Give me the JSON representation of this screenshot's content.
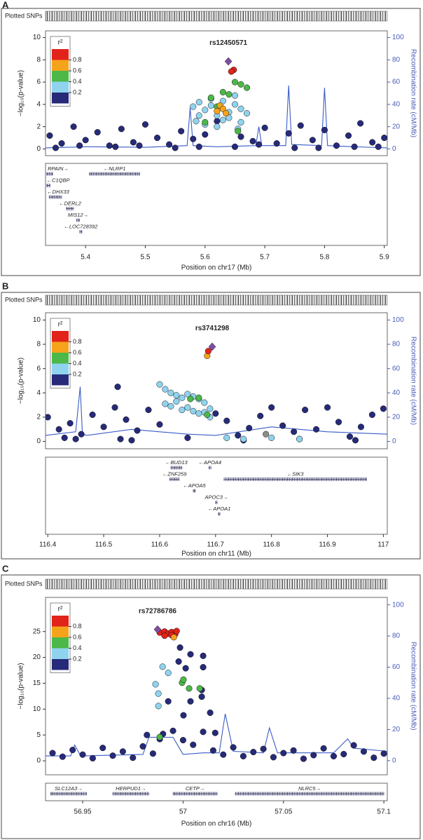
{
  "chart_data": [
    {
      "type": "scatter",
      "panel": "A",
      "track_label": "Plotted SNPs",
      "title": "rs12450571",
      "xlabel": "Position on chr17 (Mb)",
      "ylabel": "−log₁₀(p-value)",
      "y2label": "Recombination rate (cM/Mb)",
      "xlim": [
        5.333,
        5.905
      ],
      "xticks": [
        5.4,
        5.5,
        5.6,
        5.7,
        5.8,
        5.9
      ],
      "ylim": [
        -0.6,
        10.6
      ],
      "yticks": [
        0,
        2,
        4,
        6,
        8,
        10
      ],
      "y2lim": [
        -6,
        106
      ],
      "y2ticks": [
        0,
        20,
        40,
        60,
        80,
        100
      ],
      "legend": {
        "title": "r²",
        "position": "upper left",
        "colors": [
          "#262a78",
          "#8fd3ee",
          "#4cb848",
          "#f6a31c",
          "#e2231a"
        ],
        "ticks": [
          0.2,
          0.4,
          0.6,
          0.8
        ]
      },
      "series": [
        {
          "color": "#262a78",
          "x": [
            5.34,
            5.36,
            5.38,
            5.4,
            5.42,
            5.44,
            5.46,
            5.48,
            5.5,
            5.52,
            5.54,
            5.56,
            5.58,
            5.6,
            5.62,
            5.66,
            5.68,
            5.7,
            5.72,
            5.74,
            5.76,
            5.78,
            5.8,
            5.82,
            5.84,
            5.86,
            5.88,
            5.9,
            5.35,
            5.45,
            5.55,
            5.65,
            5.75,
            5.85,
            5.39,
            5.49,
            5.59,
            5.69,
            5.79,
            5.89
          ],
          "values": [
            1.2,
            0.5,
            2.0,
            0.8,
            1.5,
            0.3,
            1.8,
            0.6,
            2.2,
            1.0,
            0.4,
            1.6,
            0.9,
            1.3,
            2.5,
            1.1,
            0.7,
            1.9,
            0.5,
            1.4,
            2.1,
            0.8,
            1.7,
            0.3,
            1.2,
            2.3,
            0.6,
            1.0,
            0.1,
            0.2,
            0.1,
            0.2,
            0.1,
            0.2,
            0.3,
            0.3,
            0.2,
            0.4,
            0.1,
            0.2
          ]
        },
        {
          "color": "#8fd3ee",
          "x": [
            5.58,
            5.59,
            5.6,
            5.61,
            5.62,
            5.63,
            5.64,
            5.65,
            5.66,
            5.6,
            5.62,
            5.64,
            5.66,
            5.59,
            5.61,
            5.63,
            5.65,
            5.67,
            5.585,
            5.655
          ],
          "values": [
            3.8,
            4.2,
            3.5,
            4.5,
            3.0,
            2.6,
            3.3,
            4.0,
            3.6,
            2.2,
            2.0,
            2.8,
            2.4,
            3.0,
            3.9,
            4.3,
            4.8,
            3.2,
            2.5,
            1.8
          ]
        },
        {
          "color": "#4cb848",
          "x": [
            5.61,
            5.63,
            5.65,
            5.66,
            5.67,
            5.64,
            5.62,
            5.655,
            5.6
          ],
          "values": [
            4.6,
            5.1,
            6.0,
            5.8,
            5.5,
            4.9,
            3.8,
            1.6,
            2.4
          ]
        },
        {
          "color": "#f6a31c",
          "x": [
            5.62,
            5.625,
            5.63,
            5.635
          ],
          "values": [
            3.4,
            3.9,
            3.6,
            3.2
          ]
        },
        {
          "color": "#e2231a",
          "x": [
            5.648,
            5.644
          ],
          "values": [
            7.1,
            6.95
          ]
        },
        {
          "color": "#7f4ea3",
          "marker": "diamond",
          "x": [
            5.639
          ],
          "values": [
            7.86
          ]
        },
        {
          "color": "#3a5bc7",
          "axis": "y2",
          "type": "line",
          "x": [
            5.333,
            5.4,
            5.5,
            5.57,
            5.575,
            5.58,
            5.62,
            5.685,
            5.69,
            5.695,
            5.735,
            5.74,
            5.745,
            5.795,
            5.8,
            5.805,
            5.85,
            5.905
          ],
          "values": [
            1,
            2,
            1.5,
            3,
            37,
            3,
            2,
            3,
            20,
            3,
            3,
            57,
            4,
            3,
            55,
            3,
            2,
            1
          ]
        }
      ],
      "genes": [
        {
          "name": "RPAIN→",
          "start": 5.335,
          "end": 5.345
        },
        {
          "name": "←NLRP1",
          "start": 5.406,
          "end": 5.491
        },
        {
          "name": "←C1QBP",
          "start": 5.335,
          "end": 5.341
        },
        {
          "name": "←DHX33",
          "start": 5.339,
          "end": 5.36
        },
        {
          "name": "←DERL2",
          "start": 5.368,
          "end": 5.38
        },
        {
          "name": "MIS12→",
          "start": 5.385,
          "end": 5.39
        },
        {
          "name": "←LOC728392",
          "start": 5.39,
          "end": 5.394
        }
      ]
    },
    {
      "type": "scatter",
      "panel": "B",
      "track_label": "Plotted SNPs",
      "title": "rs3741298",
      "xlabel": "Position on chr11 (Mb)",
      "ylabel": "−log₁₀(p-value)",
      "y2label": "Recombination rate (cM/Mb)",
      "xlim": [
        116.396,
        117.007
      ],
      "xticks": [
        116.4,
        116.5,
        116.6,
        116.7,
        116.8,
        116.9,
        117
      ],
      "ylim": [
        -0.6,
        10.6
      ],
      "yticks": [
        0,
        2,
        4,
        6,
        8,
        10
      ],
      "y2lim": [
        -6,
        106
      ],
      "y2ticks": [
        0,
        20,
        40,
        60,
        80,
        100
      ],
      "legend": {
        "title": "r²",
        "position": "upper left",
        "colors": [
          "#262a78",
          "#8fd3ee",
          "#4cb848",
          "#f6a31c",
          "#e2231a"
        ],
        "ticks": [
          0.2,
          0.4,
          0.6,
          0.8
        ]
      },
      "series": [
        {
          "color": "#262a78",
          "x": [
            116.4,
            116.42,
            116.44,
            116.46,
            116.48,
            116.5,
            116.52,
            116.525,
            116.54,
            116.56,
            116.58,
            116.6,
            116.7,
            116.72,
            116.74,
            116.76,
            116.78,
            116.8,
            116.82,
            116.84,
            116.86,
            116.88,
            116.9,
            116.92,
            116.94,
            116.96,
            116.98,
            117.0,
            116.45,
            116.55,
            116.65,
            116.75,
            116.85,
            116.95,
            116.43,
            116.53
          ],
          "values": [
            2.0,
            1.0,
            1.5,
            0.6,
            2.2,
            1.2,
            2.8,
            4.5,
            1.8,
            0.9,
            2.6,
            1.4,
            2.3,
            1.7,
            0.5,
            1.1,
            2.1,
            2.8,
            1.3,
            0.8,
            2.6,
            1.0,
            2.8,
            1.6,
            0.4,
            1.2,
            2.2,
            2.7,
            0.2,
            0.1,
            0.3,
            0.1,
            0.2,
            0.1,
            0.3,
            0.2
          ]
        },
        {
          "color": "#8fd3ee",
          "x": [
            116.6,
            116.61,
            116.62,
            116.63,
            116.64,
            116.65,
            116.66,
            116.67,
            116.68,
            116.69,
            116.62,
            116.64,
            116.66,
            116.68,
            116.61,
            116.63,
            116.65,
            116.67,
            116.69,
            116.72,
            116.75,
            116.8,
            116.85
          ],
          "values": [
            4.7,
            4.3,
            4.0,
            3.8,
            3.6,
            3.9,
            3.7,
            3.5,
            3.2,
            2.7,
            2.9,
            2.6,
            2.5,
            2.4,
            3.1,
            3.3,
            2.8,
            2.3,
            2.0,
            0.3,
            0.2,
            0.3,
            0.2
          ]
        },
        {
          "color": "#4cb848",
          "x": [
            116.655,
            116.67,
            116.685
          ],
          "values": [
            3.5,
            3.6,
            2.2
          ]
        },
        {
          "color": "#8c8c8c",
          "x": [
            116.79
          ],
          "values": [
            0.6
          ]
        },
        {
          "color": "#f6a31c",
          "x": [
            116.685
          ],
          "values": [
            7.05
          ]
        },
        {
          "color": "#e2231a",
          "x": [
            116.687
          ],
          "values": [
            7.44
          ]
        },
        {
          "color": "#7f4ea3",
          "marker": "diamond",
          "x": [
            116.694
          ],
          "values": [
            7.8
          ]
        },
        {
          "color": "#3a5bc7",
          "axis": "y2",
          "type": "line",
          "x": [
            116.396,
            116.45,
            116.458,
            116.462,
            116.47,
            116.55,
            116.6,
            116.65,
            116.7,
            116.8,
            116.9,
            117.007
          ],
          "values": [
            5,
            8,
            45,
            6,
            5,
            10,
            8,
            6,
            5,
            12,
            8,
            6
          ]
        }
      ],
      "genes": [
        {
          "name": "←BUD13",
          "start": 116.62,
          "end": 116.64
        },
        {
          "name": "←APOA4",
          "start": 116.688,
          "end": 116.692
        },
        {
          "name": "←ZNF259",
          "start": 116.618,
          "end": 116.635
        },
        {
          "name": "←SIK3",
          "start": 116.715,
          "end": 116.97
        },
        {
          "name": "←APOA5",
          "start": 116.66,
          "end": 116.664
        },
        {
          "name": "APOC3→",
          "start": 116.7,
          "end": 116.703
        },
        {
          "name": "←APOA1",
          "start": 116.705,
          "end": 116.708
        }
      ]
    },
    {
      "type": "scatter",
      "panel": "C",
      "track_label": "Plotted SNPs",
      "title": "rs72786786",
      "xlabel": "Position on chr16 (Mb)",
      "ylabel": "−log₁₀(p-value)",
      "y2label": "Recombination rate (cM/Mb)",
      "xlim": [
        56.9315,
        57.1017
      ],
      "xticks": [
        56.95,
        57,
        57.05,
        57.1
      ],
      "ylim": [
        -2.7,
        31.6
      ],
      "yticks": [
        0,
        5,
        10,
        15,
        20,
        25
      ],
      "y2lim": [
        -9.1,
        104.8
      ],
      "y2ticks": [
        0,
        20,
        40,
        60,
        80,
        100
      ],
      "legend": {
        "title": "r²",
        "position": "upper left",
        "colors": [
          "#262a78",
          "#8fd3ee",
          "#4cb848",
          "#f6a31c",
          "#e2231a"
        ],
        "ticks": [
          0.2,
          0.4,
          0.6,
          0.8
        ]
      },
      "series": [
        {
          "color": "#262a78",
          "x": [
            56.935,
            56.94,
            56.945,
            56.95,
            56.955,
            56.96,
            56.965,
            56.97,
            56.975,
            56.98,
            56.985,
            56.99,
            57.0,
            57.005,
            57.01,
            57.015,
            57.02,
            57.025,
            57.03,
            57.035,
            57.04,
            57.045,
            57.05,
            57.055,
            57.06,
            57.065,
            57.07,
            57.075,
            57.08,
            57.085,
            57.09,
            57.095,
            57.1,
            56.9985,
            57.0037,
            57.01,
            56.9978,
            57.01,
            57.0013,
            57.0093,
            57.0037,
            57.0093,
            57.0002,
            57.0135,
            56.9926,
            56.9884,
            56.982,
            56.995,
            57.016
          ],
          "values": [
            1.5,
            0.8,
            2.1,
            1.2,
            0.5,
            2.5,
            1.0,
            1.8,
            0.6,
            2.8,
            1.4,
            5.2,
            4.0,
            3.1,
            5.6,
            2.0,
            1.2,
            2.6,
            0.9,
            1.7,
            2.3,
            0.7,
            1.5,
            2.0,
            0.4,
            1.1,
            2.4,
            0.9,
            1.3,
            3.0,
            1.8,
            0.6,
            1.4,
            21.9,
            20.6,
            20.3,
            19.2,
            18.1,
            17.9,
            13.7,
            11.5,
            12.4,
            8.8,
            9.3,
            11.5,
            4.2,
            5.0,
            5.8,
            5.4
          ]
        },
        {
          "color": "#8fd3ee",
          "x": [
            56.9898,
            56.9926,
            56.9863,
            56.9877,
            56.9877
          ],
          "values": [
            18.2,
            17,
            14.8,
            13,
            10.6
          ]
        },
        {
          "color": "#4cb848",
          "x": [
            56.9995,
            57.003,
            57.0083,
            57.0002,
            56.9884
          ],
          "values": [
            15.1,
            14,
            14,
            15.7,
            4.6
          ]
        },
        {
          "color": "#e2231a",
          "x": [
            56.9884,
            56.9908,
            56.9926,
            56.9943,
            56.9961,
            56.9968,
            56.9908,
            56.9943
          ],
          "values": [
            24.8,
            25.0,
            24.6,
            24.9,
            24.5,
            25.1,
            24.2,
            24.3
          ]
        },
        {
          "color": "#f6a31c",
          "x": [
            56.9954
          ],
          "values": [
            23.9
          ]
        },
        {
          "color": "#7f4ea3",
          "marker": "diamond",
          "x": [
            56.9873
          ],
          "values": [
            25.4
          ]
        },
        {
          "color": "#3a5bc7",
          "axis": "y2",
          "type": "line",
          "x": [
            56.9315,
            56.944,
            56.946,
            56.949,
            56.98,
            56.983,
            56.995,
            57.0,
            57.01,
            57.018,
            57.021,
            57.025,
            57.04,
            57.043,
            57.047,
            57.075,
            57.082,
            57.085,
            57.1017
          ],
          "values": [
            3,
            3,
            10,
            3,
            4,
            15,
            15,
            4,
            5,
            5,
            30,
            6,
            5,
            21,
            5,
            5,
            14,
            8,
            6
          ]
        }
      ],
      "genes": [
        {
          "name": "SLC12A3→",
          "start": 56.934,
          "end": 56.952
        },
        {
          "name": "HERPUD1→",
          "start": 56.965,
          "end": 56.983
        },
        {
          "name": "CETP→",
          "start": 56.995,
          "end": 57.017
        },
        {
          "name": "NLRC5→",
          "start": 57.026,
          "end": 57.1
        }
      ]
    }
  ]
}
